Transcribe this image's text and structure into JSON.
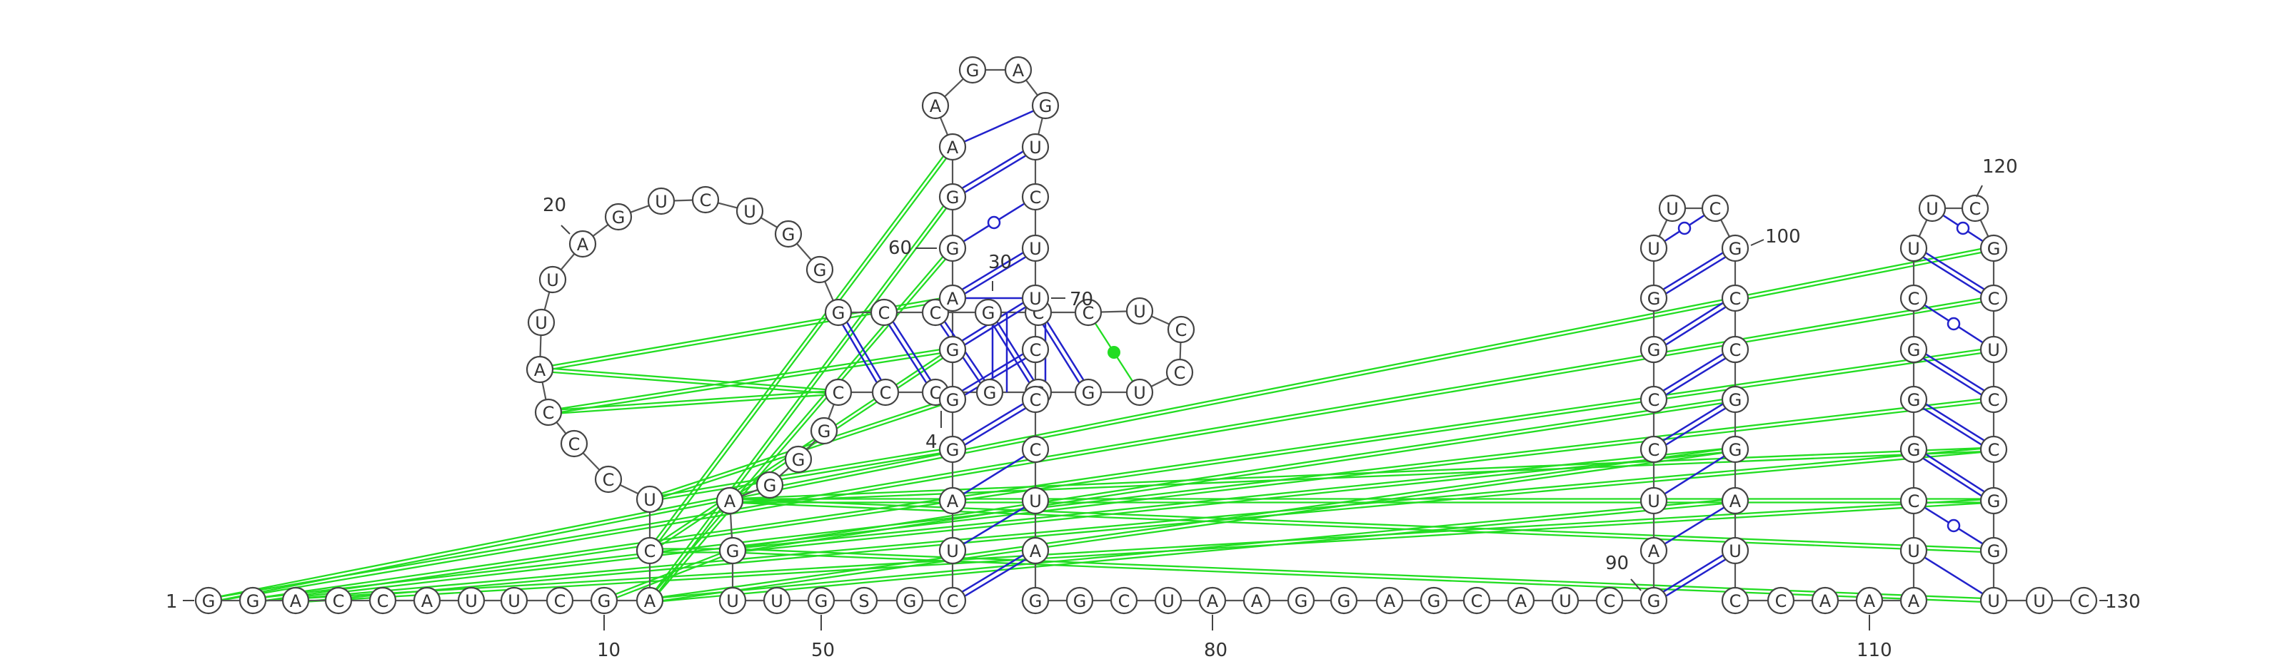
{
  "diagram": {
    "type": "rna-secondary-structure",
    "colors": {
      "backbone": "#555555",
      "base_pair": "#2222cc",
      "tertiary_interaction": "#22dd22"
    },
    "number_labels": [
      "1",
      "10",
      "20",
      "30",
      "4",
      "50",
      "60",
      "70",
      "80",
      "90",
      "100",
      "110",
      "120",
      "130"
    ]
  }
}
